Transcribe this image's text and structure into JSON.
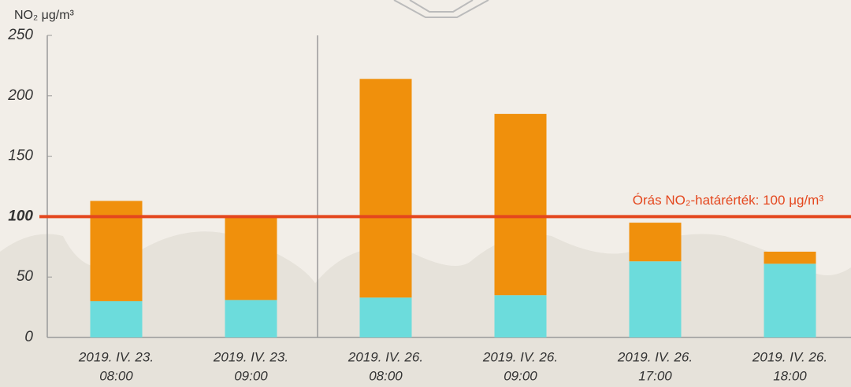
{
  "chart_data": {
    "type": "bar",
    "stacked": true,
    "y_label": "NO₂ μg/m³",
    "categories": [
      [
        "2019. IV. 23.",
        "08:00"
      ],
      [
        "2019. IV. 23.",
        "09:00"
      ],
      [
        "2019. IV. 26.",
        "08:00"
      ],
      [
        "2019. IV. 26.",
        "09:00"
      ],
      [
        "2019. IV. 26.",
        "17:00"
      ],
      [
        "2019. IV. 26.",
        "18:00"
      ]
    ],
    "series": [
      {
        "color": "#6cdcdc",
        "values": [
          30,
          31,
          33,
          35,
          63,
          61
        ]
      },
      {
        "color": "#f0900c",
        "values": [
          83,
          69,
          181,
          150,
          32,
          10
        ]
      }
    ],
    "ylim": [
      0,
      250
    ],
    "yticks": [
      0,
      50,
      100,
      150,
      200,
      250
    ],
    "threshold": {
      "value": 100,
      "label": "Órás NO₂-határérték: 100 μg/m³",
      "color": "#e4471e"
    }
  }
}
